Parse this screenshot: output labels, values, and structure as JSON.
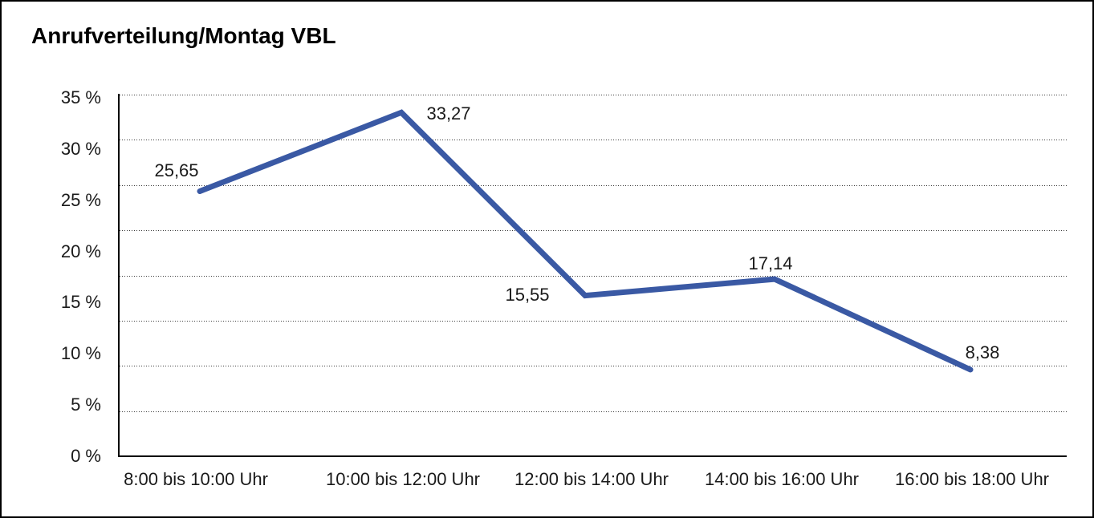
{
  "chart_data": {
    "type": "line",
    "title": "Anrufverteilung/Montag VBL",
    "categories": [
      "8:00 bis 10:00 Uhr",
      "10:00 bis 12:00 Uhr",
      "12:00 bis 14:00 Uhr",
      "14:00 bis 16:00 Uhr",
      "16:00 bis 18:00 Uhr"
    ],
    "values": [
      25.65,
      33.27,
      15.55,
      17.14,
      8.38
    ],
    "value_labels": [
      "25,65",
      "33,27",
      "15,55",
      "17,14",
      "8,38"
    ],
    "xlabel": "",
    "ylabel": "",
    "ylim": [
      0,
      35
    ],
    "y_tick_labels": [
      "35 %",
      "30 %",
      "25 %",
      "20 %",
      "15 %",
      "10 %",
      "5 %",
      "0 %"
    ],
    "grid": "horizontal-dotted",
    "legend_position": "none",
    "line_color": "#3A59A4",
    "axis_color": "#000000",
    "grid_color": "#3C3C3C",
    "text_color": "#1A1A1A",
    "background_color": "#FFFFFF",
    "border_color": "#000000"
  }
}
